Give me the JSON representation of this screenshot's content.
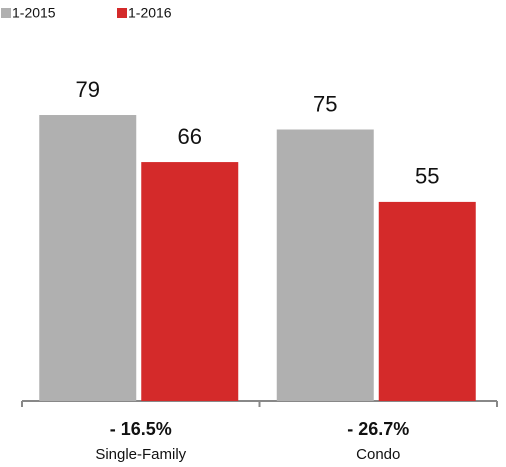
{
  "chart_data": {
    "type": "bar",
    "categories": [
      "Single-Family",
      "Condo"
    ],
    "series": [
      {
        "name": "1-2015",
        "color": "#b0b0b0",
        "values": [
          79,
          75
        ]
      },
      {
        "name": "1-2016",
        "color": "#d42a2a",
        "values": [
          66,
          55
        ]
      }
    ],
    "annotations": [
      "- 16.5%",
      "- 26.7%"
    ],
    "ylim": [
      0,
      100
    ]
  }
}
